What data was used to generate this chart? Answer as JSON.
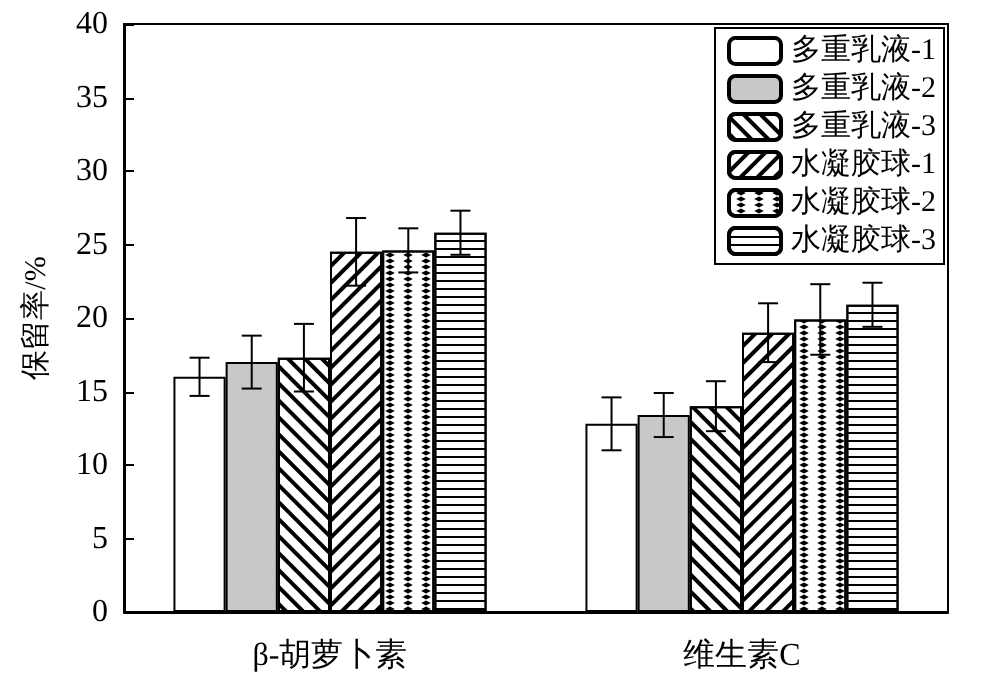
{
  "chart_data": {
    "type": "bar",
    "ylabel": "保留率/%",
    "categories": [
      "β-胡萝卜素",
      "维生素C"
    ],
    "series": [
      {
        "name": "多重乳液-1",
        "color": "#ffffff",
        "values": [
          16,
          12.8
        ],
        "errors": [
          1.3,
          1.8
        ]
      },
      {
        "name": "多重乳液-2",
        "color": "#c8c8c8",
        "values": [
          17,
          13.4
        ],
        "errors": [
          1.8,
          1.5
        ]
      },
      {
        "name": "多重乳液-3",
        "color": "#ffffff",
        "values": [
          17.3,
          14
        ],
        "errors": [
          2.3,
          1.7
        ]
      },
      {
        "name": "水凝胶球-1",
        "color": "#ffffff",
        "values": [
          24.5,
          19
        ],
        "errors": [
          2.3,
          2
        ]
      },
      {
        "name": "水凝胶球-2",
        "color": "#ffffff",
        "values": [
          24.6,
          19.9
        ],
        "errors": [
          1.5,
          2.4
        ]
      },
      {
        "name": "水凝胶球-3",
        "color": "#ffffff",
        "values": [
          25.8,
          20.9
        ],
        "errors": [
          1.5,
          1.5
        ]
      }
    ],
    "ylim": [
      0,
      40
    ],
    "yticks": [
      0,
      5,
      10,
      15,
      20,
      25,
      30,
      35,
      40
    ],
    "grid": false,
    "legend": "top right"
  }
}
